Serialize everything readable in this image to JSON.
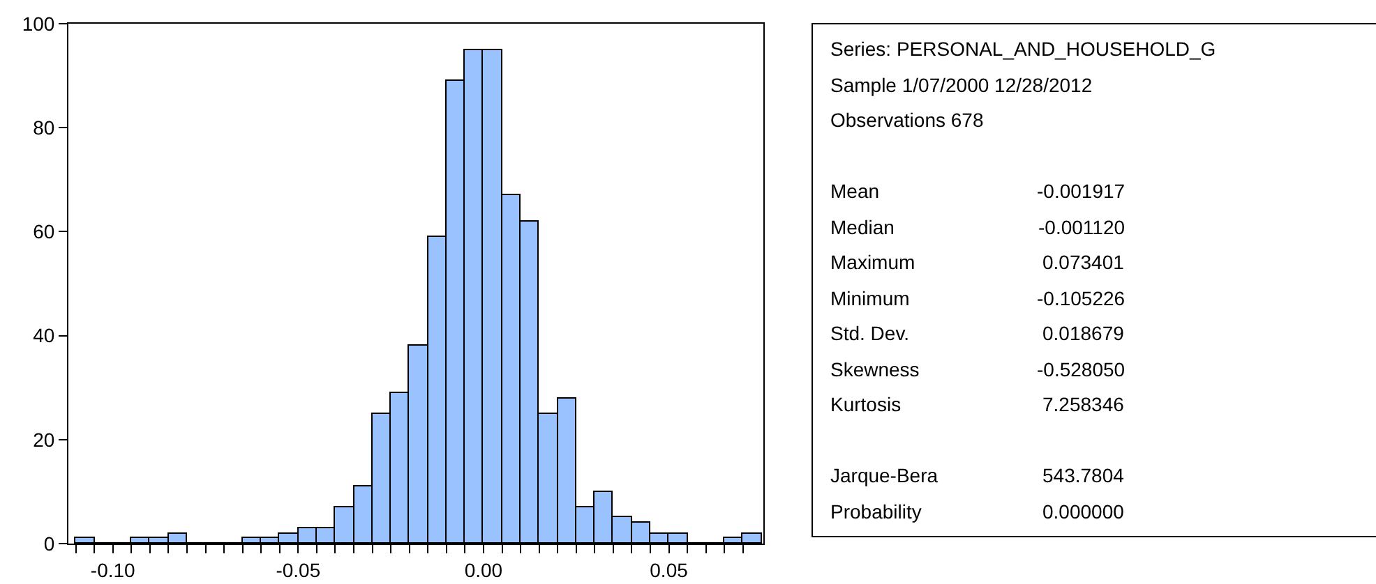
{
  "chart_data": {
    "type": "histogram",
    "bins": [
      -0.11,
      -0.105,
      -0.1,
      -0.095,
      -0.09,
      -0.085,
      -0.08,
      -0.075,
      -0.07,
      -0.065,
      -0.06,
      -0.055,
      -0.05,
      -0.045,
      -0.04,
      -0.035,
      -0.03,
      -0.025,
      -0.02,
      -0.015,
      -0.01,
      -0.005,
      0.0,
      0.005,
      0.01,
      0.015,
      0.02,
      0.025,
      0.03,
      0.035,
      0.04,
      0.045,
      0.05,
      0.055,
      0.06,
      0.065,
      0.07,
      0.075
    ],
    "values": [
      1,
      0,
      0,
      1,
      1,
      2,
      0,
      0,
      0,
      1,
      1,
      2,
      3,
      3,
      7,
      11,
      25,
      29,
      38,
      59,
      89,
      95,
      95,
      67,
      62,
      25,
      28,
      7,
      10,
      5,
      4,
      2,
      2,
      0,
      0,
      1,
      2
    ],
    "color": "#99c2ff",
    "xlim": [
      -0.112,
      0.0755
    ],
    "xticks": [
      {
        "value": -0.11,
        "label": null
      },
      {
        "value": -0.105,
        "label": null
      },
      {
        "value": -0.1,
        "label": "-0.10"
      },
      {
        "value": -0.095,
        "label": null
      },
      {
        "value": -0.09,
        "label": null
      },
      {
        "value": -0.085,
        "label": null
      },
      {
        "value": -0.08,
        "label": null
      },
      {
        "value": -0.075,
        "label": null
      },
      {
        "value": -0.07,
        "label": null
      },
      {
        "value": -0.065,
        "label": null
      },
      {
        "value": -0.06,
        "label": null
      },
      {
        "value": -0.055,
        "label": null
      },
      {
        "value": -0.05,
        "label": "-0.05"
      },
      {
        "value": -0.045,
        "label": null
      },
      {
        "value": -0.04,
        "label": null
      },
      {
        "value": -0.035,
        "label": null
      },
      {
        "value": -0.03,
        "label": null
      },
      {
        "value": -0.025,
        "label": null
      },
      {
        "value": -0.02,
        "label": null
      },
      {
        "value": -0.015,
        "label": null
      },
      {
        "value": -0.01,
        "label": null
      },
      {
        "value": -0.005,
        "label": null
      },
      {
        "value": 0.0,
        "label": "0.00"
      },
      {
        "value": 0.005,
        "label": null
      },
      {
        "value": 0.01,
        "label": null
      },
      {
        "value": 0.015,
        "label": null
      },
      {
        "value": 0.02,
        "label": null
      },
      {
        "value": 0.025,
        "label": null
      },
      {
        "value": 0.03,
        "label": null
      },
      {
        "value": 0.035,
        "label": null
      },
      {
        "value": 0.04,
        "label": null
      },
      {
        "value": 0.045,
        "label": null
      },
      {
        "value": 0.05,
        "label": "0.05"
      },
      {
        "value": 0.055,
        "label": null
      },
      {
        "value": 0.06,
        "label": null
      },
      {
        "value": 0.065,
        "label": null
      },
      {
        "value": 0.07,
        "label": null
      }
    ],
    "ylim": [
      0,
      100
    ],
    "yticks": [
      0,
      20,
      40,
      60,
      80,
      100
    ],
    "annotations": [
      "Series: PERSONAL_AND_HOUSEHOLD_G",
      "Sample 1/07/2000 12/28/2012",
      "Observations 678",
      "Mean",
      "-0.001917",
      "Median",
      "-0.001120",
      "Maximum",
      "0.073401",
      "Minimum",
      "-0.105226",
      "Std. Dev.",
      "0.018679",
      "Skewness",
      "-0.528050",
      "Kurtosis",
      "7.258346",
      "Jarque-Bera",
      "543.7804",
      "Probability",
      "0.000000"
    ]
  }
}
